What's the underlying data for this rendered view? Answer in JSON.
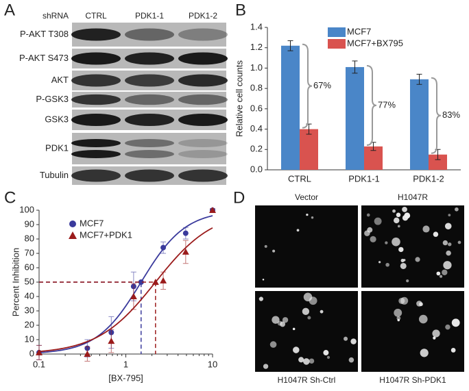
{
  "panel_labels": [
    "A",
    "B",
    "C",
    "D"
  ],
  "blot": {
    "header": "shRNA",
    "lanes": [
      "CTRL",
      "PDK1-1",
      "PDK1-2"
    ],
    "rows": [
      "P-AKT T308",
      "P-AKT S473",
      "AKT",
      "P-GSK3",
      "GSK3",
      "PDK1",
      "Tubulin"
    ]
  },
  "chart_data": [
    {
      "type": "bar",
      "y_label": "Relative cell counts",
      "categories": [
        "CTRL",
        "PDK1-1",
        "PDK1-2"
      ],
      "series": [
        {
          "name": "MCF7",
          "color": "#4a86c8",
          "values": [
            1.22,
            1.01,
            0.89
          ],
          "errors": [
            0.05,
            0.06,
            0.05
          ]
        },
        {
          "name": "MCF7+BX795",
          "color": "#d9534f",
          "values": [
            0.4,
            0.23,
            0.15
          ],
          "errors": [
            0.05,
            0.04,
            0.05
          ]
        }
      ],
      "annotations": [
        "67%",
        "77%",
        "83%"
      ],
      "ylim": [
        0,
        1.4
      ],
      "yticks": [
        {
          "value": 0,
          "label": "0.0"
        },
        0.2,
        0.4,
        0.6,
        0.8,
        {
          "value": 1,
          "label": "1.0"
        },
        1.2,
        1.4
      ],
      "legend": "upper right"
    },
    {
      "type": "scatter",
      "x_label": "[BX-795]",
      "y_label": "Percent Inhibition",
      "xscale": "log",
      "xlim": [
        0.1,
        10
      ],
      "xticks": [
        0.1,
        1,
        10
      ],
      "ylim": [
        0,
        100
      ],
      "yticks": [
        0,
        10,
        20,
        30,
        40,
        50,
        60,
        70,
        80,
        90,
        100
      ],
      "reference_level": 50,
      "legend": "upper left",
      "series": [
        {
          "name": "MCF7",
          "color": "#3a3a9c",
          "marker": "circle",
          "x": [
            0.1,
            0.36,
            0.68,
            1.23,
            1.5,
            2.7,
            4.9,
            10
          ],
          "values": [
            1,
            4,
            15,
            47,
            50,
            74,
            84,
            100
          ],
          "errors": [
            5,
            6,
            11,
            10,
            0,
            4,
            4,
            1
          ],
          "curve": {
            "ec50": 1.5,
            "hill": 1.7
          }
        },
        {
          "name": "MCF7+PDK1",
          "color": "#9b1b1b",
          "marker": "triangle",
          "x": [
            0.1,
            0.36,
            0.68,
            1.23,
            2.2,
            2.7,
            4.9,
            10
          ],
          "values": [
            1,
            0,
            9,
            40,
            50,
            51,
            71,
            100
          ],
          "errors": [
            5,
            5,
            8,
            9,
            0,
            6,
            8,
            1
          ],
          "curve": {
            "ec50": 2.2,
            "hill": 1.3
          }
        }
      ]
    }
  ],
  "micrographs": {
    "labels": [
      "Vector",
      "H1047R",
      "H1047R Sh-Ctrl",
      "H1047R Sh-PDK1"
    ]
  }
}
